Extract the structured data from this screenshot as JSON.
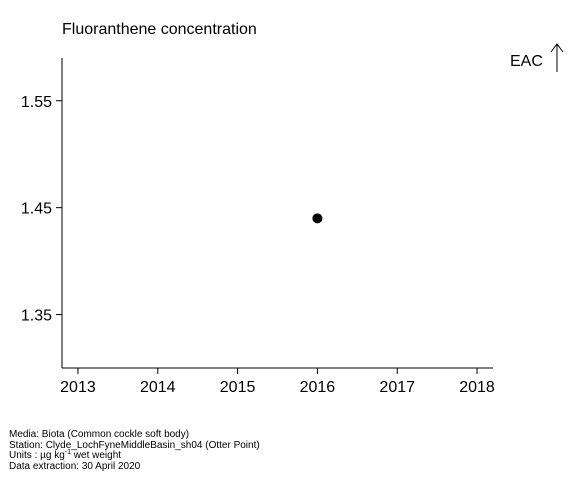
{
  "chart_data": {
    "type": "scatter",
    "title": "Fluoranthene concentration",
    "xlabel": "",
    "ylabel": "",
    "xlim": [
      2012.8,
      2018.2
    ],
    "ylim": [
      1.3,
      1.59
    ],
    "x_ticks": [
      "2013",
      "2014",
      "2015",
      "2016",
      "2017",
      "2018"
    ],
    "y_ticks": [
      "1.35",
      "1.45",
      "1.55"
    ],
    "points": [
      {
        "x": 2016,
        "y": 1.44
      }
    ],
    "annotation": {
      "label": "EAC",
      "direction": "up-arrow"
    },
    "grid": false
  },
  "colors": {
    "marker": "#000000",
    "axis": "#000000"
  },
  "footer": {
    "media_prefix": "Media: ",
    "media": "Biota (Common cockle soft body)",
    "station_prefix": "Station: ",
    "station": "Clyde_LochFyneMiddleBasin_sh04 (Otter Point)",
    "units_prefix": "Units : ",
    "units_base": "µg kg",
    "units_exp": "-1",
    "units_suffix": " wet weight",
    "extraction_prefix": "Data extraction: ",
    "extraction": "30 April 2020"
  }
}
